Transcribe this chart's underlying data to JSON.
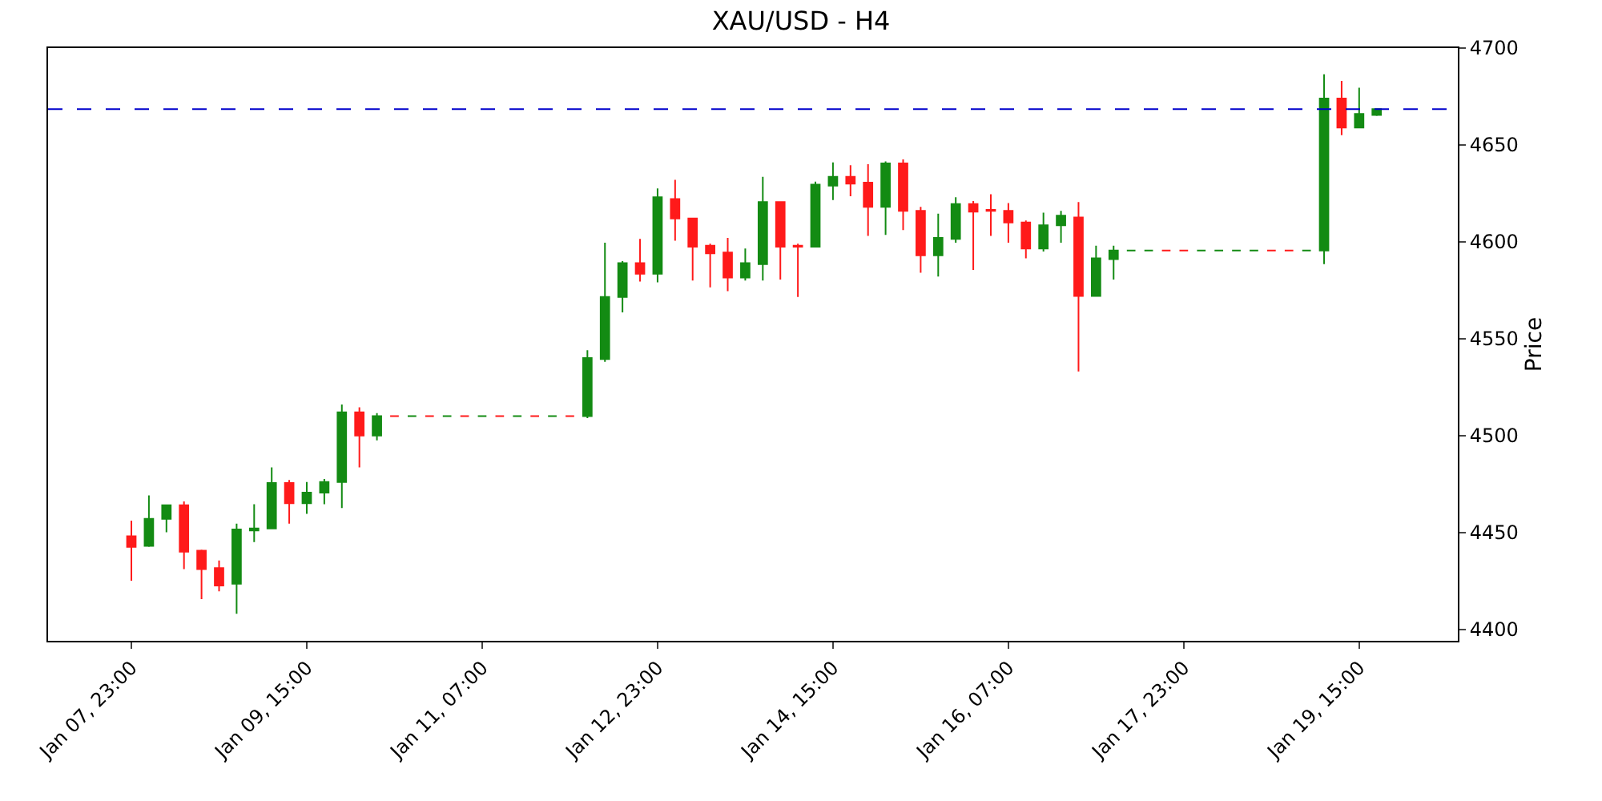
{
  "chart_data": {
    "type": "candlestick",
    "title": "XAU/USD - H4",
    "ylabel": "Price",
    "x": [
      "--01-07T23:00",
      "--01-08T03:00",
      "--01-08T07:00",
      "--01-08T11:00",
      "--01-08T15:00",
      "--01-08T19:00",
      "--01-08T23:00",
      "--01-09T03:00",
      "--01-09T07:00",
      "--01-09T11:00",
      "--01-09T15:00",
      "--01-09T19:00",
      "--01-09T23:00",
      "--01-10T03:00",
      "--01-10T07:00",
      "--01-10T11:00",
      "--01-10T15:00",
      "--01-10T19:00",
      "--01-10T23:00",
      "--01-11T03:00",
      "--01-11T07:00",
      "--01-11T11:00",
      "--01-11T15:00",
      "--01-11T19:00",
      "--01-11T23:00",
      "--01-12T03:00",
      "--01-12T07:00",
      "--01-12T11:00",
      "--01-12T15:00",
      "--01-12T19:00",
      "--01-12T23:00",
      "--01-13T03:00",
      "--01-13T07:00",
      "--01-13T11:00",
      "--01-13T15:00",
      "--01-13T19:00",
      "--01-13T23:00",
      "--01-14T03:00",
      "--01-14T07:00",
      "--01-14T11:00",
      "--01-14T15:00",
      "--01-14T19:00",
      "--01-14T23:00",
      "--01-15T03:00",
      "--01-15T07:00",
      "--01-15T11:00",
      "--01-15T15:00",
      "--01-15T19:00",
      "--01-15T23:00",
      "--01-16T03:00",
      "--01-16T07:00",
      "--01-16T11:00",
      "--01-16T15:00",
      "--01-16T19:00",
      "--01-16T23:00",
      "--01-17T03:00",
      "--01-17T07:00",
      "--01-17T11:00",
      "--01-17T15:00",
      "--01-17T19:00",
      "--01-17T23:00",
      "--01-18T03:00",
      "--01-18T07:00",
      "--01-18T11:00",
      "--01-18T15:00",
      "--01-18T19:00",
      "--01-18T23:00",
      "--01-19T03:00",
      "--01-19T07:00",
      "--01-19T11:00",
      "--01-19T15:00",
      "--01-19T19:00"
    ],
    "ohlc": [
      [
        4448,
        4456,
        4425,
        4442.5
      ],
      [
        4443,
        4469,
        4442.5,
        4457
      ],
      [
        4457,
        4464,
        4450,
        4464
      ],
      [
        4464,
        4466,
        4431,
        4440
      ],
      [
        4440.5,
        4441,
        4415.5,
        4431
      ],
      [
        4431.5,
        4435.5,
        4419.5,
        4422.5
      ],
      [
        4423.5,
        4454.5,
        4408,
        4451.5
      ],
      [
        4451,
        4464.5,
        4445,
        4452
      ],
      [
        4452,
        4483.5,
        4452,
        4475.5
      ],
      [
        4475.5,
        4477,
        4454.5,
        4465
      ],
      [
        4465,
        4476,
        4459.5,
        4470.5
      ],
      [
        4470.5,
        4477.5,
        4464.5,
        4476
      ],
      [
        4476,
        4516,
        4462.5,
        4512
      ],
      [
        4512,
        4514.5,
        4483.5,
        4500
      ],
      [
        4500,
        4511.5,
        4497.5,
        4510
      ],
      [
        4510,
        4510,
        4510,
        4510
      ],
      [
        4510,
        4510,
        4510,
        4510
      ],
      [
        4510,
        4510,
        4510,
        4510
      ],
      [
        4510,
        4510,
        4510,
        4510
      ],
      [
        4510,
        4510,
        4510,
        4510
      ],
      [
        4510,
        4510,
        4510,
        4510
      ],
      [
        4510,
        4510,
        4510,
        4510
      ],
      [
        4510,
        4510,
        4510,
        4510
      ],
      [
        4510,
        4510,
        4510,
        4510
      ],
      [
        4510,
        4510,
        4510,
        4510
      ],
      [
        4510,
        4510,
        4510,
        4510
      ],
      [
        4510,
        4544,
        4509,
        4540
      ],
      [
        4539.5,
        4599.5,
        4538,
        4571.5
      ],
      [
        4571.5,
        4590,
        4563.5,
        4589
      ],
      [
        4589,
        4601.5,
        4579.5,
        4583.5
      ],
      [
        4583.5,
        4627.5,
        4579,
        4623
      ],
      [
        4622,
        4632,
        4600.5,
        4612
      ],
      [
        4612,
        4612,
        4580,
        4597.5
      ],
      [
        4598,
        4599,
        4576.5,
        4594
      ],
      [
        4594.5,
        4602,
        4574.5,
        4581.5
      ],
      [
        4581.5,
        4596.5,
        4580,
        4589
      ],
      [
        4588.5,
        4633.5,
        4580,
        4620.5
      ],
      [
        4620.5,
        4620.5,
        4580.5,
        4597.5
      ],
      [
        4598,
        4599,
        4571.5,
        4597.5
      ],
      [
        4597.5,
        4631,
        4597,
        4629.5
      ],
      [
        4629,
        4641,
        4621.5,
        4633.5
      ],
      [
        4633.5,
        4639.5,
        4623.5,
        4630
      ],
      [
        4630.5,
        4640,
        4603,
        4618
      ],
      [
        4618,
        4641.5,
        4603.5,
        4640.5
      ],
      [
        4640.5,
        4642.5,
        4606,
        4616
      ],
      [
        4616,
        4618,
        4584,
        4593
      ],
      [
        4593,
        4614.5,
        4582,
        4602
      ],
      [
        4601.5,
        4623,
        4599.5,
        4619.5
      ],
      [
        4619.5,
        4621,
        4585.5,
        4615.5
      ],
      [
        4616.5,
        4624.5,
        4603,
        4616
      ],
      [
        4616,
        4620,
        4599.5,
        4610
      ],
      [
        4610,
        4611,
        4591.5,
        4596.5
      ],
      [
        4596.5,
        4615,
        4595,
        4608.5
      ],
      [
        4608.5,
        4616,
        4599.5,
        4613.5
      ],
      [
        4612.5,
        4620.5,
        4533,
        4572
      ],
      [
        4572,
        4598,
        4572,
        4591.5
      ],
      [
        4591,
        4598,
        4580.5,
        4595.5
      ],
      [
        4595.5,
        4595.5,
        4595.5,
        4595.5
      ],
      [
        4595.5,
        4595.5,
        4595.5,
        4595.5
      ],
      [
        4595.5,
        4595.5,
        4595.5,
        4595.5
      ],
      [
        4595.5,
        4595.5,
        4595.5,
        4595.5
      ],
      [
        4595.5,
        4595.5,
        4595.5,
        4595.5
      ],
      [
        4595.5,
        4595.5,
        4595.5,
        4595.5
      ],
      [
        4595.5,
        4595.5,
        4595.5,
        4595.5
      ],
      [
        4595.5,
        4595.5,
        4595.5,
        4595.5
      ],
      [
        4595.5,
        4595.5,
        4595.5,
        4595.5
      ],
      [
        4595.5,
        4595.5,
        4595.5,
        4595.5
      ],
      [
        4595.5,
        4595.5,
        4595.5,
        4595.5
      ],
      [
        4595.5,
        4686.5,
        4588.5,
        4674
      ],
      [
        4674,
        4683,
        4655,
        4659
      ],
      [
        4659,
        4679.5,
        4659,
        4666
      ],
      [
        4665.5,
        4668.5,
        4665,
        4668.5
      ]
    ],
    "colors": [
      "#ff1a1a",
      "#138b13",
      "#138b13",
      "#ff1a1a",
      "#ff1a1a",
      "#ff1a1a",
      "#138b13",
      "#138b13",
      "#138b13",
      "#ff1a1a",
      "#138b13",
      "#138b13",
      "#138b13",
      "#ff1a1a",
      "#138b13",
      "#ff1a1a",
      "#138b13",
      "#ff1a1a",
      "#138b13",
      "#ff1a1a",
      "#138b13",
      "#ff1a1a",
      "#138b13",
      "#ff1a1a",
      "#138b13",
      "#ff1a1a",
      "#138b13",
      "#138b13",
      "#138b13",
      "#ff1a1a",
      "#138b13",
      "#ff1a1a",
      "#ff1a1a",
      "#ff1a1a",
      "#ff1a1a",
      "#138b13",
      "#138b13",
      "#ff1a1a",
      "#ff1a1a",
      "#138b13",
      "#138b13",
      "#ff1a1a",
      "#ff1a1a",
      "#138b13",
      "#ff1a1a",
      "#ff1a1a",
      "#138b13",
      "#138b13",
      "#ff1a1a",
      "#ff1a1a",
      "#ff1a1a",
      "#ff1a1a",
      "#138b13",
      "#138b13",
      "#ff1a1a",
      "#138b13",
      "#138b13",
      "#138b13",
      "#138b13",
      "#ff1a1a",
      "#ff1a1a",
      "#138b13",
      "#138b13",
      "#138b13",
      "#138b13",
      "#ff1a1a",
      "#ff1a1a",
      "#138b13",
      "#138b13",
      "#ff1a1a",
      "#138b13",
      "#138b13"
    ],
    "xlim": [
      "--01-07T04:00",
      "--01-20T13:30"
    ],
    "xticks": [
      {
        "value": "--01-07T23:00",
        "label": "Jan 07, 23:00"
      },
      {
        "value": "--01-09T15:00",
        "label": "Jan 09, 15:00"
      },
      {
        "value": "--01-11T07:00",
        "label": "Jan 11, 07:00"
      },
      {
        "value": "--01-12T23:00",
        "label": "Jan 12, 23:00"
      },
      {
        "value": "--01-14T15:00",
        "label": "Jan 14, 15:00"
      },
      {
        "value": "--01-16T07:00",
        "label": "Jan 16, 07:00"
      },
      {
        "value": "--01-17T23:00",
        "label": "Jan 17, 23:00"
      },
      {
        "value": "--01-19T15:00",
        "label": "Jan 19, 15:00"
      }
    ],
    "ylim": [
      4394,
      4700
    ],
    "yticks": [
      4400,
      4450,
      4500,
      4550,
      4600,
      4650,
      4700
    ],
    "ref_lines": [
      {
        "axis": "y",
        "value": 4668.5,
        "color": "#0000cc",
        "line_style": "dashed"
      }
    ],
    "grid": false
  }
}
